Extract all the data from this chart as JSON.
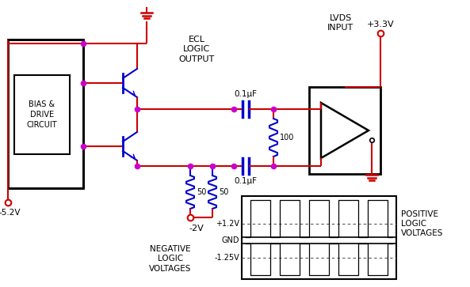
{
  "bg_color": "#ffffff",
  "red": "#cc0000",
  "blue": "#0000cc",
  "black": "#000000",
  "purple": "#cc00cc",
  "label_ecl": "ECL\nLOGIC\nOUTPUT",
  "label_lvds": "LVDS\nINPUT",
  "label_33v": "+3.3V",
  "label_52v": "-5.2V",
  "label_2v": "-2V",
  "label_cap1": "0.1μF",
  "label_cap2": "0.1μF",
  "label_r1": "100",
  "label_r2": "50",
  "label_r3": "50",
  "label_bias": "BIAS &\nDRIVE\nCIRCUIT",
  "label_neg": "NEGATIVE\nLOGIC\nVOLTAGES",
  "label_pos": "POSITIVE\nLOGIC\nVOLTAGES",
  "label_12v": "+1.2V",
  "label_gnd": "GND",
  "label_125v": "-1.25V"
}
